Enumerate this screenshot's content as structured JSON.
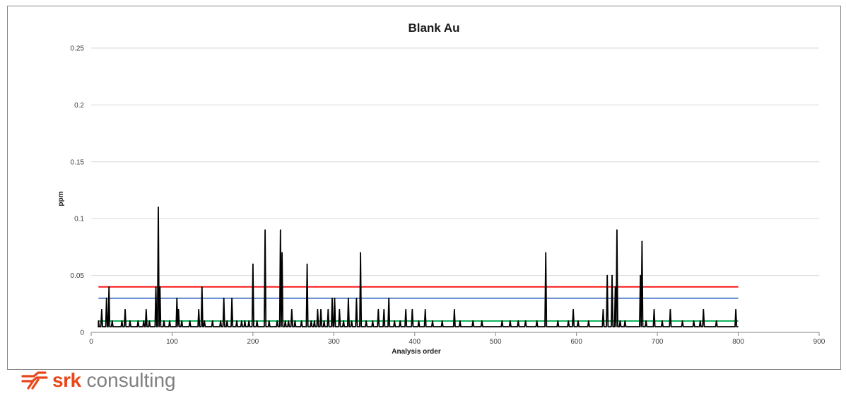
{
  "chart_data": {
    "type": "line",
    "title": "Blank Au",
    "xlabel": "Analysis order",
    "ylabel": "ppm",
    "xlim": [
      0,
      900
    ],
    "ylim": [
      0,
      0.25
    ],
    "x_ticks": [
      0,
      100,
      200,
      300,
      400,
      500,
      600,
      700,
      800,
      900
    ],
    "y_ticks": [
      0,
      0.05,
      0.1,
      0.15,
      0.2,
      0.25
    ],
    "x_tick_labels": [
      "0",
      "100",
      "200",
      "300",
      "400",
      "500",
      "600",
      "700",
      "800",
      "900"
    ],
    "y_tick_labels": [
      "0",
      "0.05",
      "0.1",
      "0.15",
      "0.2",
      "0.25"
    ],
    "grid": "horizontal",
    "legend": "none",
    "baseline": 0.005,
    "spikes": [
      [
        9,
        0.01
      ],
      [
        13,
        0.02
      ],
      [
        19,
        0.03
      ],
      [
        22,
        0.04
      ],
      [
        26,
        0.01
      ],
      [
        38,
        0.01
      ],
      [
        42,
        0.02
      ],
      [
        48,
        0.01
      ],
      [
        58,
        0.01
      ],
      [
        65,
        0.01
      ],
      [
        68,
        0.02
      ],
      [
        72,
        0.01
      ],
      [
        80,
        0.04
      ],
      [
        83,
        0.11
      ],
      [
        85,
        0.04
      ],
      [
        90,
        0.01
      ],
      [
        97,
        0.01
      ],
      [
        106,
        0.03
      ],
      [
        108,
        0.02
      ],
      [
        112,
        0.01
      ],
      [
        122,
        0.01
      ],
      [
        133,
        0.02
      ],
      [
        137,
        0.04
      ],
      [
        140,
        0.01
      ],
      [
        150,
        0.01
      ],
      [
        160,
        0.01
      ],
      [
        164,
        0.03
      ],
      [
        168,
        0.01
      ],
      [
        174,
        0.03
      ],
      [
        180,
        0.01
      ],
      [
        186,
        0.01
      ],
      [
        190,
        0.01
      ],
      [
        195,
        0.01
      ],
      [
        200,
        0.06
      ],
      [
        205,
        0.01
      ],
      [
        215,
        0.09
      ],
      [
        220,
        0.01
      ],
      [
        230,
        0.01
      ],
      [
        234,
        0.09
      ],
      [
        236,
        0.07
      ],
      [
        240,
        0.01
      ],
      [
        244,
        0.01
      ],
      [
        248,
        0.02
      ],
      [
        252,
        0.01
      ],
      [
        260,
        0.01
      ],
      [
        267,
        0.06
      ],
      [
        272,
        0.01
      ],
      [
        276,
        0.01
      ],
      [
        280,
        0.02
      ],
      [
        284,
        0.02
      ],
      [
        288,
        0.01
      ],
      [
        293,
        0.02
      ],
      [
        298,
        0.03
      ],
      [
        301,
        0.03
      ],
      [
        307,
        0.02
      ],
      [
        312,
        0.01
      ],
      [
        318,
        0.03
      ],
      [
        322,
        0.01
      ],
      [
        328,
        0.03
      ],
      [
        333,
        0.07
      ],
      [
        340,
        0.01
      ],
      [
        348,
        0.01
      ],
      [
        355,
        0.02
      ],
      [
        362,
        0.02
      ],
      [
        368,
        0.03
      ],
      [
        375,
        0.01
      ],
      [
        382,
        0.01
      ],
      [
        389,
        0.02
      ],
      [
        397,
        0.02
      ],
      [
        405,
        0.01
      ],
      [
        413,
        0.02
      ],
      [
        422,
        0.01
      ],
      [
        434,
        0.01
      ],
      [
        449,
        0.02
      ],
      [
        456,
        0.01
      ],
      [
        472,
        0.01
      ],
      [
        483,
        0.01
      ],
      [
        508,
        0.01
      ],
      [
        518,
        0.01
      ],
      [
        528,
        0.01
      ],
      [
        537,
        0.01
      ],
      [
        551,
        0.01
      ],
      [
        562,
        0.07
      ],
      [
        577,
        0.01
      ],
      [
        590,
        0.01
      ],
      [
        596,
        0.02
      ],
      [
        602,
        0.01
      ],
      [
        615,
        0.01
      ],
      [
        633,
        0.02
      ],
      [
        638,
        0.05
      ],
      [
        644,
        0.05
      ],
      [
        648,
        0.04
      ],
      [
        650,
        0.09
      ],
      [
        654,
        0.01
      ],
      [
        660,
        0.01
      ],
      [
        679,
        0.05
      ],
      [
        681,
        0.08
      ],
      [
        686,
        0.01
      ],
      [
        696,
        0.02
      ],
      [
        706,
        0.01
      ],
      [
        716,
        0.02
      ],
      [
        731,
        0.01
      ],
      [
        745,
        0.01
      ],
      [
        753,
        0.01
      ],
      [
        757,
        0.02
      ],
      [
        773,
        0.01
      ],
      [
        797,
        0.02
      ]
    ],
    "control_lines": [
      {
        "color": "#ff0000",
        "y": 0.04
      },
      {
        "color": "#4472c4",
        "y": 0.03
      },
      {
        "color": "#00b050",
        "y": 0.01
      }
    ],
    "series_color": "#000000",
    "x_range_end": 800
  },
  "branding": {
    "brand": "srk",
    "word": "consulting",
    "brand_color": "#e8471b",
    "icon": "srk-arrows-logo-icon"
  }
}
